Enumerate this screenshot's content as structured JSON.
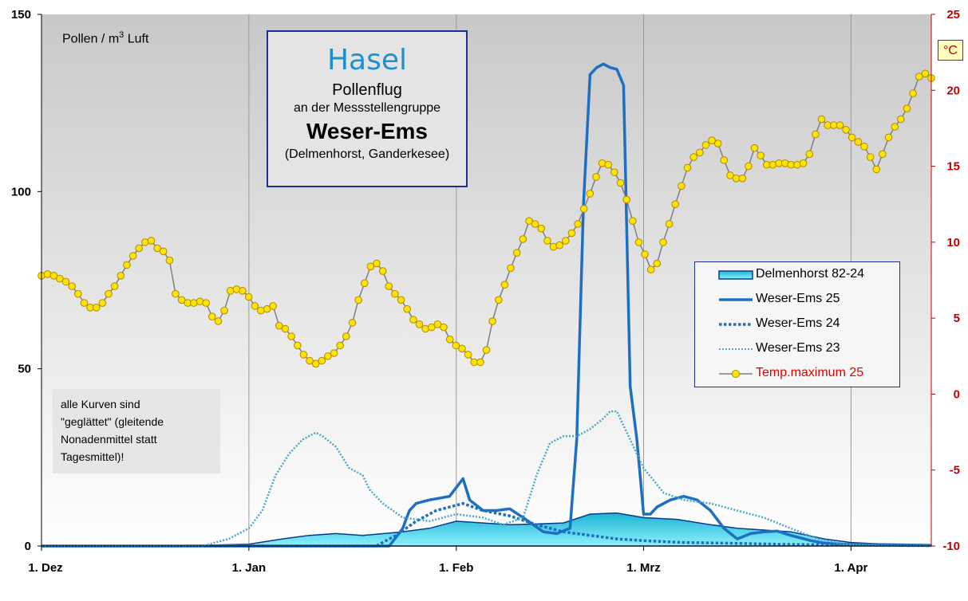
{
  "title": {
    "species": "Hasel",
    "line1": "Pollenflug",
    "line2": "an der Messstellengruppe",
    "line3": "Weser-Ems",
    "line4": "(Delmenhorst,  Ganderkesee)"
  },
  "unit_left_main": "Pollen / m",
  "unit_left_sup": "3",
  "unit_left_tail": " Luft",
  "unit_right": "°C",
  "note": [
    "alle Kurven  sind",
    "\"geglättet\"  (gleitende",
    "Nonadenmittel  statt",
    "Tagesmittel)!"
  ],
  "colors": {
    "delmenhorst_fill": "#33d6e8",
    "delmenhorst_edge": "#0a3a8a",
    "we25": "#1e6fc0",
    "we24": "#1e6fc0",
    "we23": "#4aa8c8",
    "temp_line": "#808080",
    "temp_marker": "#ffe400",
    "temp_marker_edge": "#b08a00",
    "right_axis": "#c00000"
  },
  "chart_data": {
    "type": "line",
    "x_unit": "days since 1. Dez",
    "x_range": [
      0,
      133
    ],
    "x_ticks": [
      {
        "x": 0,
        "label": "1. Dez"
      },
      {
        "x": 31,
        "label": "1. Jan"
      },
      {
        "x": 62,
        "label": "1. Feb"
      },
      {
        "x": 90,
        "label": "1. Mrz"
      },
      {
        "x": 121,
        "label": "1. Apr"
      }
    ],
    "y_left": {
      "range": [
        0,
        150
      ],
      "ticks": [
        0,
        50,
        100,
        150
      ],
      "label": "Pollen / m3 Luft"
    },
    "y_right": {
      "range": [
        -10,
        25
      ],
      "ticks": [
        -10,
        -5,
        0,
        5,
        10,
        15,
        20,
        25
      ],
      "label": "°C"
    },
    "grid": "vertical",
    "legend_position": "right",
    "series": [
      {
        "name": "Delmenhorst 82-24",
        "axis": "left",
        "style": "area",
        "points": [
          [
            0,
            0
          ],
          [
            24,
            0.2
          ],
          [
            31,
            0.5
          ],
          [
            36,
            2
          ],
          [
            40,
            3
          ],
          [
            44,
            3.5
          ],
          [
            48,
            3
          ],
          [
            54,
            4
          ],
          [
            58,
            5
          ],
          [
            62,
            7
          ],
          [
            66,
            6.5
          ],
          [
            70,
            6
          ],
          [
            74,
            6.2
          ],
          [
            78,
            6.5
          ],
          [
            82,
            9
          ],
          [
            86,
            9.3
          ],
          [
            90,
            8
          ],
          [
            95,
            7.5
          ],
          [
            100,
            6
          ],
          [
            104,
            5
          ],
          [
            108,
            4.5
          ],
          [
            112,
            4
          ],
          [
            117,
            2
          ],
          [
            121,
            1
          ],
          [
            125,
            0.6
          ],
          [
            133,
            0.3
          ]
        ]
      },
      {
        "name": "Weser-Ems 25",
        "axis": "left",
        "style": "solid",
        "points": [
          [
            0,
            0
          ],
          [
            52,
            0
          ],
          [
            54,
            5
          ],
          [
            55,
            10
          ],
          [
            56,
            12
          ],
          [
            58,
            13
          ],
          [
            61,
            14
          ],
          [
            63,
            19
          ],
          [
            64,
            13
          ],
          [
            66,
            10
          ],
          [
            68,
            10
          ],
          [
            70,
            10.5
          ],
          [
            72,
            8
          ],
          [
            75,
            4
          ],
          [
            77,
            3.5
          ],
          [
            79,
            5
          ],
          [
            80,
            30
          ],
          [
            81,
            96
          ],
          [
            82,
            133
          ],
          [
            83,
            135
          ],
          [
            84,
            136
          ],
          [
            85,
            135
          ],
          [
            86,
            134.5
          ],
          [
            87,
            130
          ],
          [
            88,
            45
          ],
          [
            89,
            30
          ],
          [
            90,
            9
          ],
          [
            91,
            9
          ],
          [
            92,
            11
          ],
          [
            94,
            13
          ],
          [
            96,
            14
          ],
          [
            98,
            13
          ],
          [
            100,
            10
          ],
          [
            102,
            5
          ],
          [
            104,
            2
          ],
          [
            106,
            3.5
          ],
          [
            108,
            4
          ],
          [
            110,
            4.2
          ],
          [
            112,
            3
          ],
          [
            115,
            1.5
          ],
          [
            117,
            0.8
          ],
          [
            120,
            0.5
          ],
          [
            126,
            0.4
          ],
          [
            133,
            0.2
          ]
        ]
      },
      {
        "name": "Weser-Ems 24",
        "axis": "left",
        "style": "dotted",
        "points": [
          [
            0,
            0
          ],
          [
            50,
            0
          ],
          [
            53,
            3
          ],
          [
            56,
            7
          ],
          [
            59,
            10
          ],
          [
            61,
            11
          ],
          [
            63,
            12
          ],
          [
            66,
            10
          ],
          [
            70,
            8.5
          ],
          [
            74,
            6
          ],
          [
            78,
            4
          ],
          [
            82,
            3
          ],
          [
            86,
            2
          ],
          [
            90,
            1.5
          ],
          [
            96,
            1
          ],
          [
            102,
            0.8
          ],
          [
            110,
            0.5
          ],
          [
            120,
            0.3
          ],
          [
            133,
            0.1
          ]
        ]
      },
      {
        "name": "Weser-Ems 23",
        "axis": "left",
        "style": "dotted-fine",
        "points": [
          [
            0,
            0
          ],
          [
            24,
            0
          ],
          [
            28,
            2
          ],
          [
            31,
            5
          ],
          [
            33,
            10
          ],
          [
            35,
            20
          ],
          [
            37,
            26
          ],
          [
            39,
            30
          ],
          [
            41,
            32
          ],
          [
            42,
            31
          ],
          [
            44,
            28
          ],
          [
            46,
            22
          ],
          [
            48,
            20
          ],
          [
            49,
            16
          ],
          [
            51,
            12
          ],
          [
            54,
            8
          ],
          [
            58,
            7
          ],
          [
            62,
            9
          ],
          [
            66,
            8
          ],
          [
            69,
            6
          ],
          [
            72,
            8
          ],
          [
            74,
            20
          ],
          [
            76,
            29
          ],
          [
            78,
            31
          ],
          [
            80,
            31
          ],
          [
            82,
            33
          ],
          [
            84,
            36
          ],
          [
            85,
            38
          ],
          [
            86,
            38
          ],
          [
            88,
            30
          ],
          [
            90,
            22
          ],
          [
            93,
            15
          ],
          [
            96,
            13
          ],
          [
            100,
            12
          ],
          [
            104,
            10
          ],
          [
            108,
            8
          ],
          [
            112,
            5
          ],
          [
            116,
            2
          ],
          [
            120,
            0.5
          ],
          [
            126,
            0
          ],
          [
            133,
            0
          ]
        ]
      },
      {
        "name": "Temp.maximum 25",
        "axis": "right",
        "style": "line-markers",
        "values": [
          7.8,
          7.9,
          7.8,
          7.6,
          7.4,
          7.1,
          6.6,
          6,
          5.7,
          5.7,
          6,
          6.6,
          7.1,
          7.8,
          8.5,
          9.1,
          9.6,
          10,
          10.1,
          9.6,
          9.4,
          8.8,
          6.6,
          6.2,
          6,
          6,
          6.1,
          6,
          5.1,
          4.8,
          5.5,
          6.8,
          6.9,
          6.8,
          6.4,
          5.8,
          5.5,
          5.6,
          5.8,
          4.5,
          4.3,
          3.8,
          3.2,
          2.6,
          2.2,
          2,
          2.2,
          2.5,
          2.7,
          3.2,
          3.8,
          4.7,
          6.2,
          7.3,
          8.4,
          8.6,
          8.1,
          7.1,
          6.6,
          6.2,
          5.6,
          4.9,
          4.6,
          4.3,
          4.4,
          4.6,
          4.4,
          3.6,
          3.2,
          3,
          2.6,
          2.1,
          2.1,
          2.9,
          4.8,
          6.2,
          7.2,
          8.3,
          9.3,
          10.2,
          11.4,
          11.2,
          10.9,
          10.1,
          9.7,
          9.8,
          10.1,
          10.6,
          11.2,
          12.2,
          13.2,
          14.3,
          15.2,
          15.1,
          14.6,
          13.9,
          12.8,
          11.4,
          10,
          9.2,
          8.2,
          8.6,
          10,
          11.2,
          12.5,
          13.7,
          14.9,
          15.6,
          15.9,
          16.4,
          16.7,
          16.5,
          15.4,
          14.4,
          14.2,
          14.2,
          15,
          16.2,
          15.7,
          15.1,
          15.1,
          15.2,
          15.2,
          15.1,
          15.1,
          15.2,
          15.8,
          17.1,
          18.1,
          17.7,
          17.7,
          17.7,
          17.4,
          16.9,
          16.6,
          16.3,
          15.6,
          14.8,
          15.8,
          16.9,
          17.6,
          18.1,
          18.8,
          19.8,
          20.9,
          21.1,
          20.8
        ]
      }
    ]
  },
  "legend": [
    {
      "label": "Delmenhorst 82-24",
      "sym": "area"
    },
    {
      "label": "Weser-Ems 25",
      "sym": "solid"
    },
    {
      "label": "Weser-Ems 24",
      "sym": "dotted"
    },
    {
      "label": "Weser-Ems 23",
      "sym": "dotted-fine"
    },
    {
      "label": "Temp.maximum 25",
      "sym": "marker",
      "color": "#e00000"
    }
  ]
}
